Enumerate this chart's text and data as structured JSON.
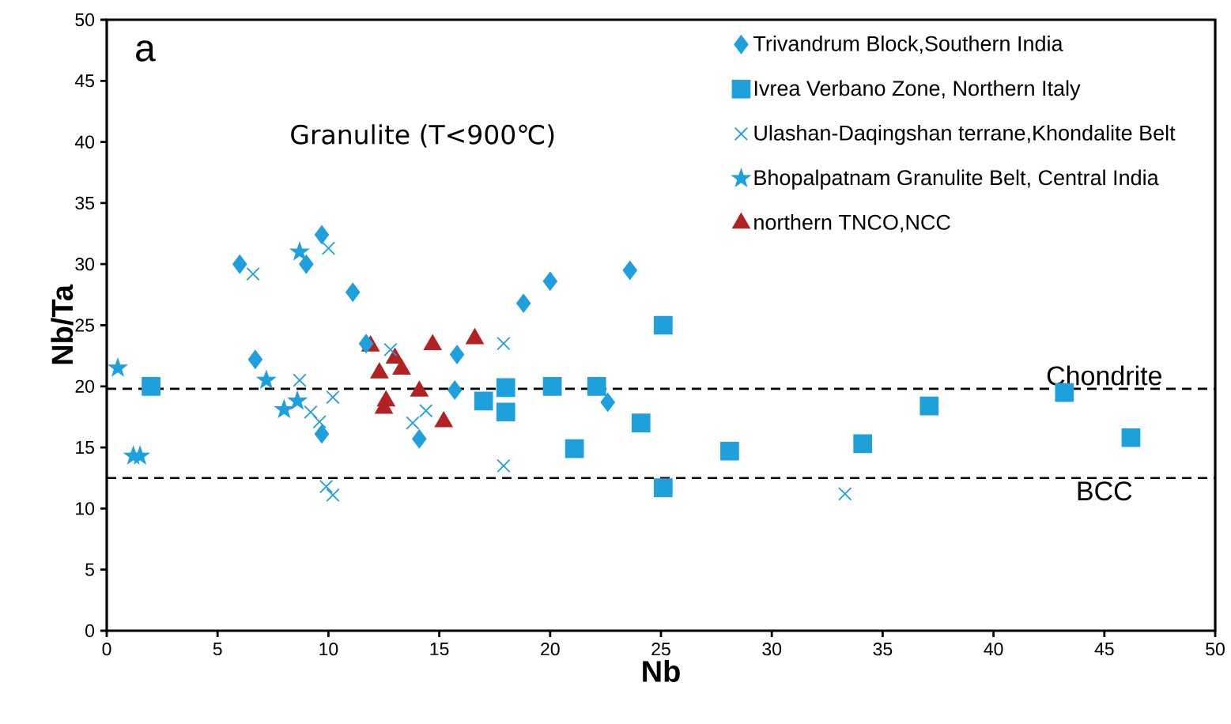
{
  "chart_data": {
    "type": "scatter",
    "xlabel": "Nb",
    "ylabel": "Nb/Ta",
    "xlim": [
      0,
      50
    ],
    "ylim": [
      0,
      50
    ],
    "xticks": [
      0,
      5,
      10,
      15,
      20,
      25,
      30,
      35,
      40,
      45,
      50
    ],
    "yticks": [
      0,
      5,
      10,
      15,
      20,
      25,
      30,
      35,
      40,
      45,
      50
    ],
    "grid": false,
    "legend": "top right",
    "annotations": [
      "a",
      "Granulite (T<900℃)"
    ],
    "ref_lines": [
      {
        "axis": "y",
        "value": 19.8,
        "label": "Chondrite",
        "line_style": "dashed",
        "color": "#000000"
      },
      {
        "axis": "y",
        "value": 12.5,
        "label": "BCC",
        "line_style": "dashed",
        "color": "#000000"
      }
    ],
    "series": [
      {
        "name": "Trivandrum Block,Southern India",
        "color": "#1ea0dc",
        "marker": "diamond",
        "x": [
          6.0,
          9.7,
          9.0,
          11.1,
          6.7,
          9.7,
          11.7,
          15.8,
          15.7,
          14.1,
          18.8,
          20.0,
          23.6,
          22.6
        ],
        "values": [
          30.0,
          32.4,
          30.0,
          27.7,
          22.2,
          16.1,
          23.5,
          22.6,
          19.7,
          15.7,
          26.8,
          28.6,
          29.5,
          18.7
        ]
      },
      {
        "name": "Ivrea Verbano Zone, Northern Italy",
        "color": "#1ea0dc",
        "marker": "square",
        "x": [
          2.0,
          17.0,
          18.0,
          18.0,
          20.1,
          22.1,
          21.1,
          24.1,
          25.1,
          25.1,
          28.1,
          34.1,
          37.1,
          43.2,
          46.2
        ],
        "values": [
          20.0,
          18.8,
          19.9,
          17.9,
          20.0,
          20.0,
          14.9,
          17.0,
          25.0,
          11.7,
          14.7,
          15.3,
          18.4,
          19.5,
          15.8
        ]
      },
      {
        "name": "Ulashan-Daqingshan terrane,Khondalite Belt",
        "color": "#1ea0dc",
        "marker": "cross",
        "x": [
          6.6,
          10.0,
          8.7,
          10.2,
          9.2,
          9.6,
          9.9,
          10.2,
          12.8,
          14.4,
          13.8,
          17.9,
          17.9,
          33.3
        ],
        "values": [
          29.2,
          31.3,
          20.5,
          19.1,
          17.9,
          17.1,
          11.8,
          11.1,
          23.0,
          18.0,
          17.0,
          23.5,
          13.5,
          11.2
        ]
      },
      {
        "name": "Bhopalpatnam Granulite Belt, Central India",
        "color": "#1ea0dc",
        "marker": "star",
        "x": [
          0.5,
          1.2,
          1.5,
          8.7,
          7.2,
          8.0,
          8.6
        ],
        "values": [
          21.5,
          14.3,
          14.3,
          31.0,
          20.5,
          18.1,
          18.8
        ]
      },
      {
        "name": "northern TNCO,NCC",
        "color": "#b22222",
        "marker": "triangle",
        "x": [
          11.9,
          13.0,
          13.3,
          12.3,
          14.1,
          12.6,
          12.5,
          15.2,
          14.7,
          16.6
        ],
        "values": [
          23.3,
          22.3,
          21.4,
          21.1,
          19.6,
          18.8,
          18.2,
          17.1,
          23.4,
          23.9
        ]
      }
    ]
  }
}
